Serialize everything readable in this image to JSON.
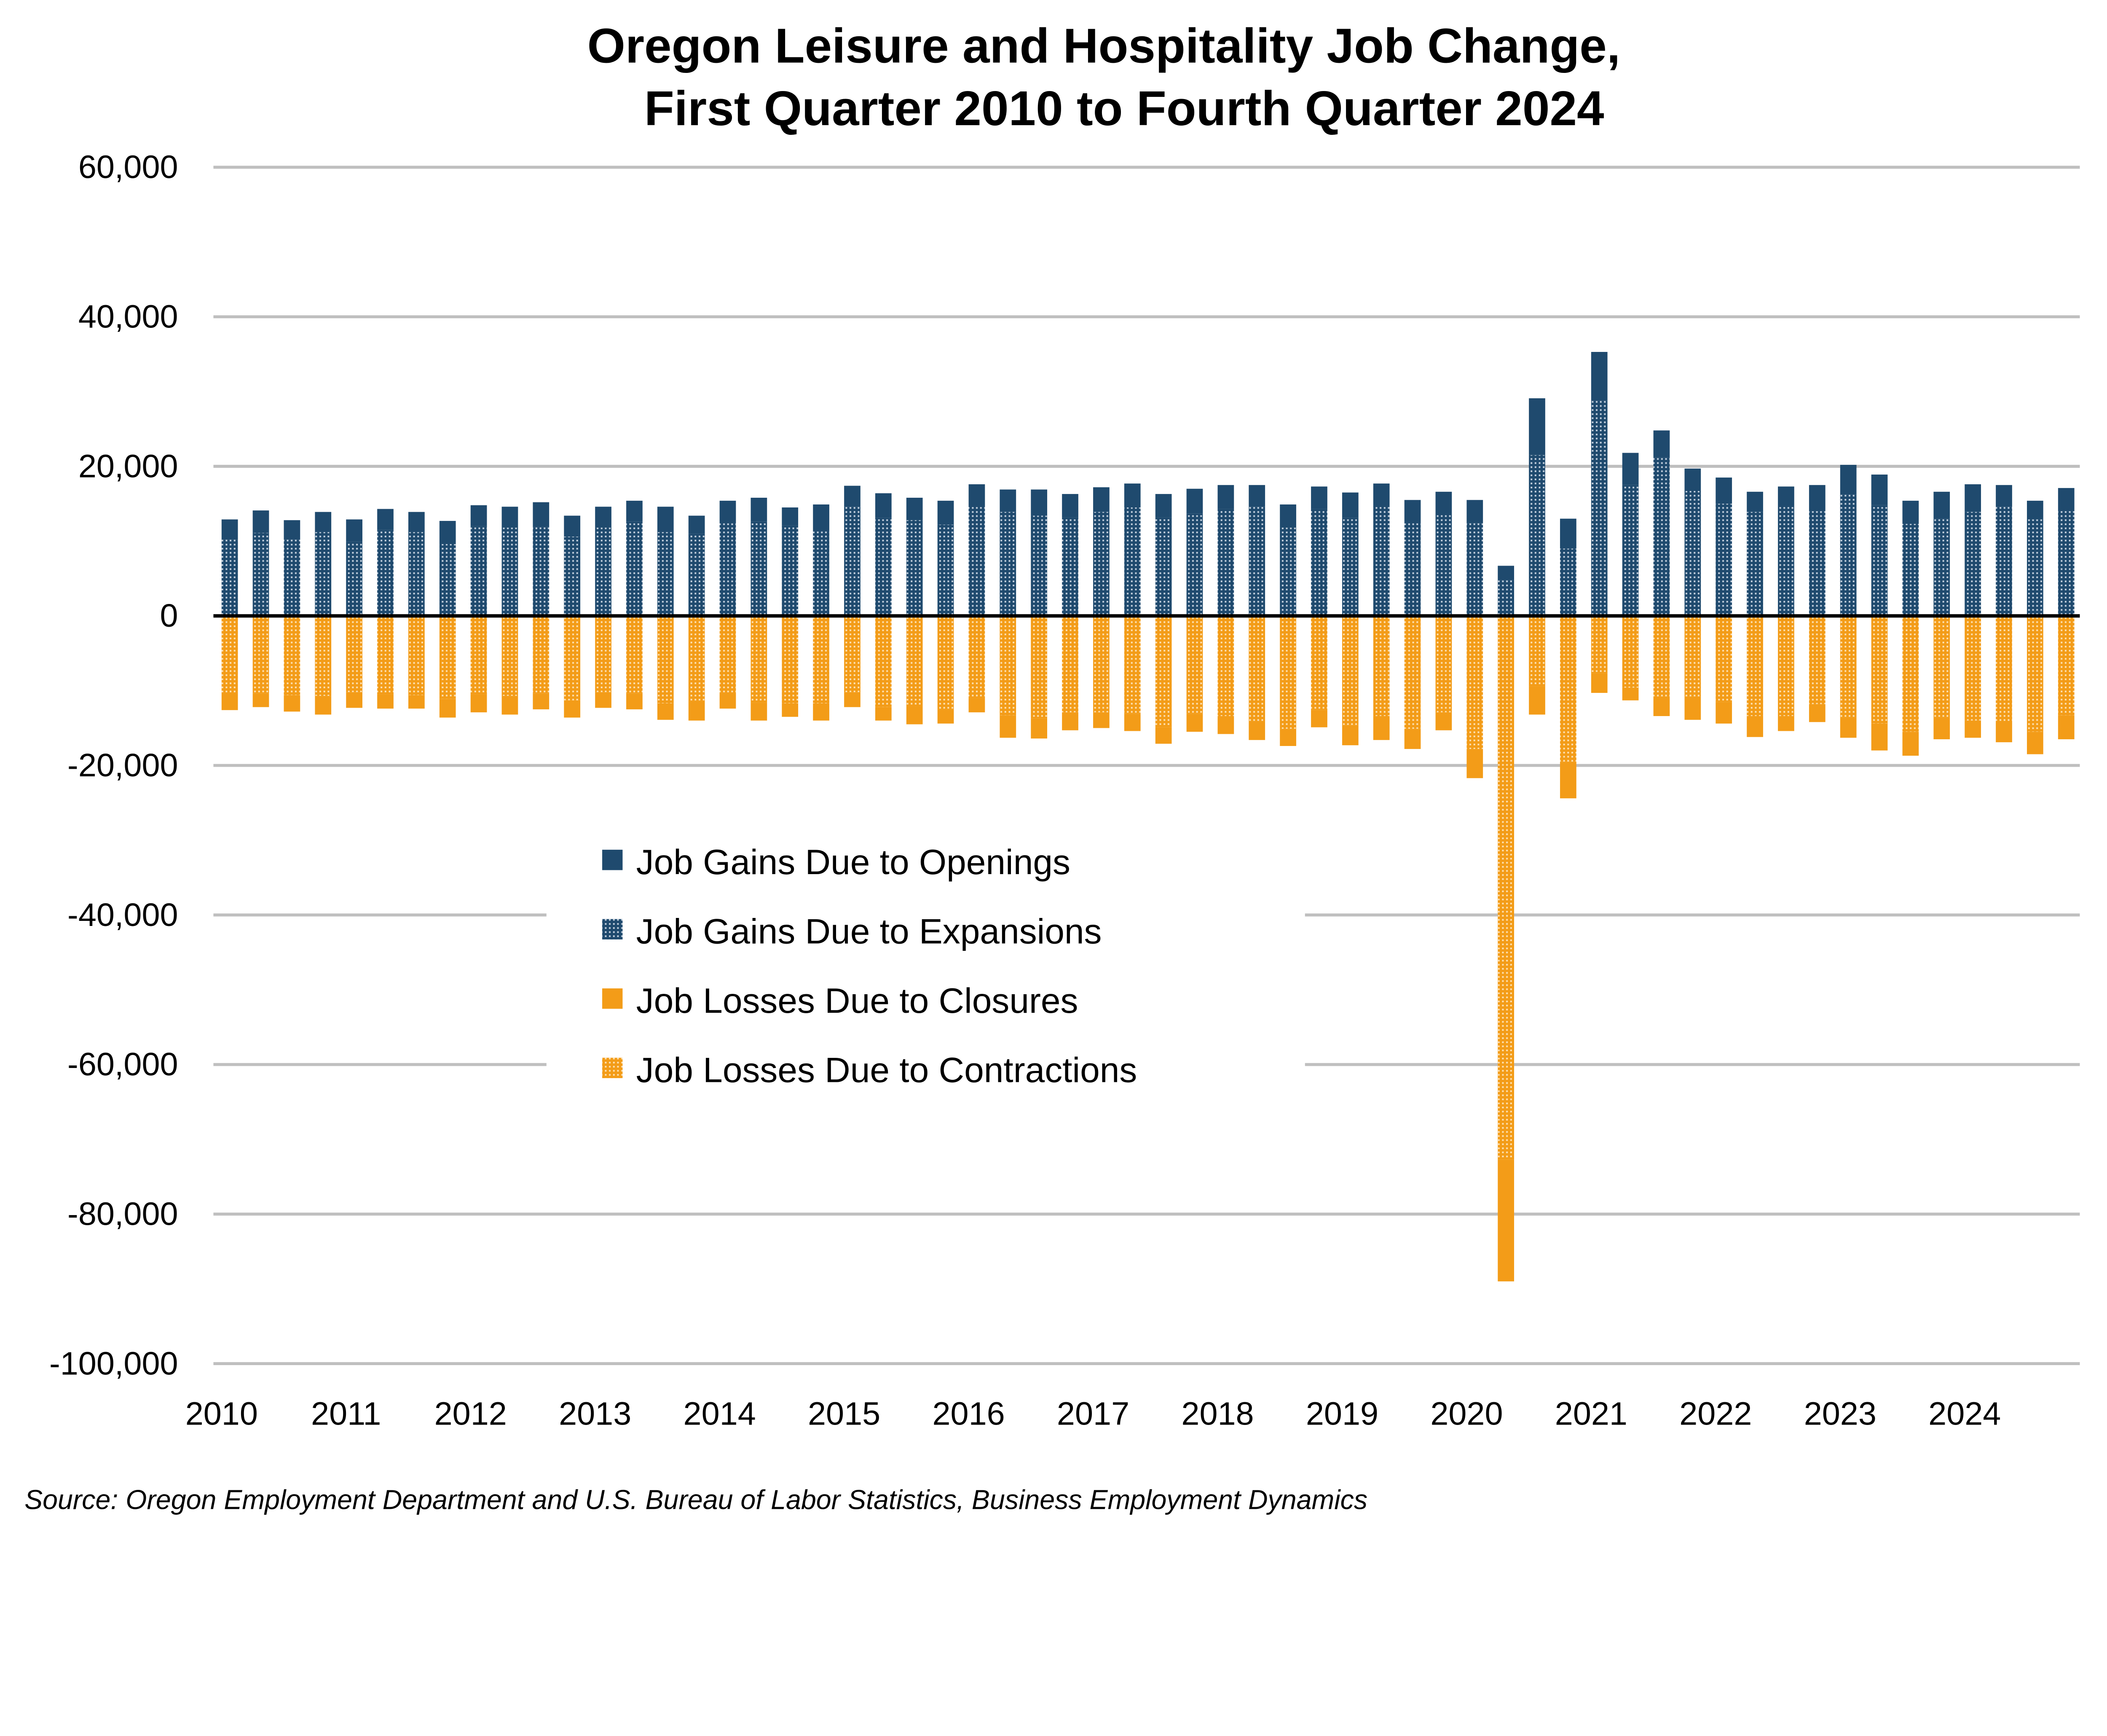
{
  "chart_data": {
    "type": "bar",
    "stacked": true,
    "title": "Oregon Leisure and Hospitality Job Change,",
    "subtitle": "First Quarter 2010 to Fourth Quarter 2024",
    "xlabel": "",
    "ylabel": "",
    "ylim": [
      -100000,
      60000
    ],
    "yticks": [
      "60,000",
      "40,000",
      "20,000",
      "0",
      "-20,000",
      "-40,000",
      "-60,000",
      "-80,000",
      "-100,000"
    ],
    "ytick_values": [
      60000,
      40000,
      20000,
      0,
      -20000,
      -40000,
      -60000,
      -80000,
      -100000
    ],
    "xtick_labels": [
      "2010",
      "2011",
      "2012",
      "2013",
      "2014",
      "2015",
      "2016",
      "2017",
      "2018",
      "2019",
      "2020",
      "2021",
      "2022",
      "2023",
      "2024"
    ],
    "grid": true,
    "legend_position": "center-left",
    "categories": [
      "2010 Q1",
      "2010 Q2",
      "2010 Q3",
      "2010 Q4",
      "2011 Q1",
      "2011 Q2",
      "2011 Q3",
      "2011 Q4",
      "2012 Q1",
      "2012 Q2",
      "2012 Q3",
      "2012 Q4",
      "2013 Q1",
      "2013 Q2",
      "2013 Q3",
      "2013 Q4",
      "2014 Q1",
      "2014 Q2",
      "2014 Q3",
      "2014 Q4",
      "2015 Q1",
      "2015 Q2",
      "2015 Q3",
      "2015 Q4",
      "2016 Q1",
      "2016 Q2",
      "2016 Q3",
      "2016 Q4",
      "2017 Q1",
      "2017 Q2",
      "2017 Q3",
      "2017 Q4",
      "2018 Q1",
      "2018 Q2",
      "2018 Q3",
      "2018 Q4",
      "2019 Q1",
      "2019 Q2",
      "2019 Q3",
      "2019 Q4",
      "2020 Q1",
      "2020 Q2",
      "2020 Q3",
      "2020 Q4",
      "2021 Q1",
      "2021 Q2",
      "2021 Q3",
      "2021 Q4",
      "2022 Q1",
      "2022 Q2",
      "2022 Q3",
      "2022 Q4",
      "2023 Q1",
      "2023 Q2",
      "2023 Q3",
      "2023 Q4",
      "2024 Q1",
      "2024 Q2",
      "2024 Q3",
      "2024 Q4"
    ],
    "series": [
      {
        "name": "Job Gains Due to Expansions",
        "stack": "positive",
        "color": "#4d7298",
        "values": [
          10200,
          11100,
          10200,
          11200,
          9900,
          11500,
          11200,
          9600,
          12000,
          11800,
          11900,
          10600,
          11800,
          12600,
          11200,
          11000,
          12500,
          12600,
          12100,
          11400,
          14600,
          13100,
          12800,
          12200,
          14700,
          13900,
          13400,
          13200,
          13900,
          14500,
          13200,
          13700,
          14300,
          14600,
          11800,
          14300,
          13100,
          14700,
          12500,
          13600,
          12400,
          4800,
          21500,
          9000,
          28800,
          17500,
          21200,
          16700,
          15000,
          13900,
          14700,
          14000,
          16200,
          14800,
          12300,
          13000,
          13900,
          14600,
          12900,
          14000
        ]
      },
      {
        "name": "Job Gains Due to Openings",
        "stack": "positive",
        "color": "#1f4a6e",
        "values": [
          2700,
          3000,
          2600,
          2700,
          3000,
          2800,
          2700,
          3100,
          2800,
          2800,
          3300,
          2800,
          2800,
          2800,
          3400,
          2400,
          2900,
          3200,
          2400,
          3500,
          2800,
          3300,
          3000,
          3200,
          2900,
          3000,
          3500,
          3100,
          3300,
          3200,
          3100,
          3300,
          3200,
          2900,
          3100,
          3000,
          3400,
          3000,
          3000,
          3000,
          3100,
          1900,
          7600,
          4000,
          6500,
          4300,
          3600,
          3000,
          3500,
          2700,
          2600,
          3500,
          4000,
          4100,
          3100,
          3600,
          3700,
          2900,
          2500,
          3100
        ]
      },
      {
        "name": "Job Losses Due to Contractions",
        "stack": "negative",
        "color": "#f7b955",
        "values": [
          -10300,
          -10400,
          -10600,
          -10700,
          -10200,
          -10500,
          -10600,
          -11100,
          -10500,
          -10700,
          -10400,
          -11300,
          -10200,
          -10400,
          -11700,
          -11400,
          -10300,
          -11600,
          -11700,
          -11700,
          -10200,
          -12200,
          -12100,
          -12500,
          -11000,
          -13300,
          -13700,
          -12900,
          -12900,
          -13100,
          -14900,
          -13100,
          -13400,
          -14100,
          -15100,
          -12600,
          -14600,
          -13400,
          -15100,
          -12900,
          -17800,
          -72700,
          -9400,
          -19500,
          -7700,
          -9600,
          -10800,
          -10800,
          -11500,
          -13400,
          -13400,
          -11800,
          -13600,
          -14400,
          -15500,
          -13600,
          -14000,
          -14300,
          -15500,
          -13300
        ]
      },
      {
        "name": "Job Losses Due to Closures",
        "stack": "negative",
        "color": "#f39c18",
        "values": [
          -2300,
          -1800,
          -2200,
          -2500,
          -2100,
          -1900,
          -1800,
          -2500,
          -2400,
          -2500,
          -2100,
          -2300,
          -2100,
          -2100,
          -2200,
          -2600,
          -2100,
          -2400,
          -1800,
          -2300,
          -2000,
          -1800,
          -2400,
          -1900,
          -1900,
          -3000,
          -2700,
          -2400,
          -2100,
          -2300,
          -2200,
          -2400,
          -2400,
          -2500,
          -2300,
          -2300,
          -2700,
          -3200,
          -2700,
          -2400,
          -3900,
          -16300,
          -3800,
          -4900,
          -2600,
          -1700,
          -2600,
          -3100,
          -2900,
          -2800,
          -2000,
          -2400,
          -2700,
          -3600,
          -3200,
          -2900,
          -2300,
          -2600,
          -3000,
          -3200
        ]
      }
    ],
    "legend": [
      {
        "label": "Job Gains Due to Openings",
        "color": "#1f4a6e",
        "pattern": "solid"
      },
      {
        "label": "Job Gains Due to Expansions",
        "color": "#4d7298",
        "pattern": "dotted"
      },
      {
        "label": "Job Losses Due to Closures",
        "color": "#f39c18",
        "pattern": "solid"
      },
      {
        "label": "Job Losses Due to Contractions",
        "color": "#f7b955",
        "pattern": "dotted"
      }
    ],
    "source": "Source: Oregon Employment Department and U.S. Bureau of Labor Statistics, Business Employment Dynamics"
  }
}
